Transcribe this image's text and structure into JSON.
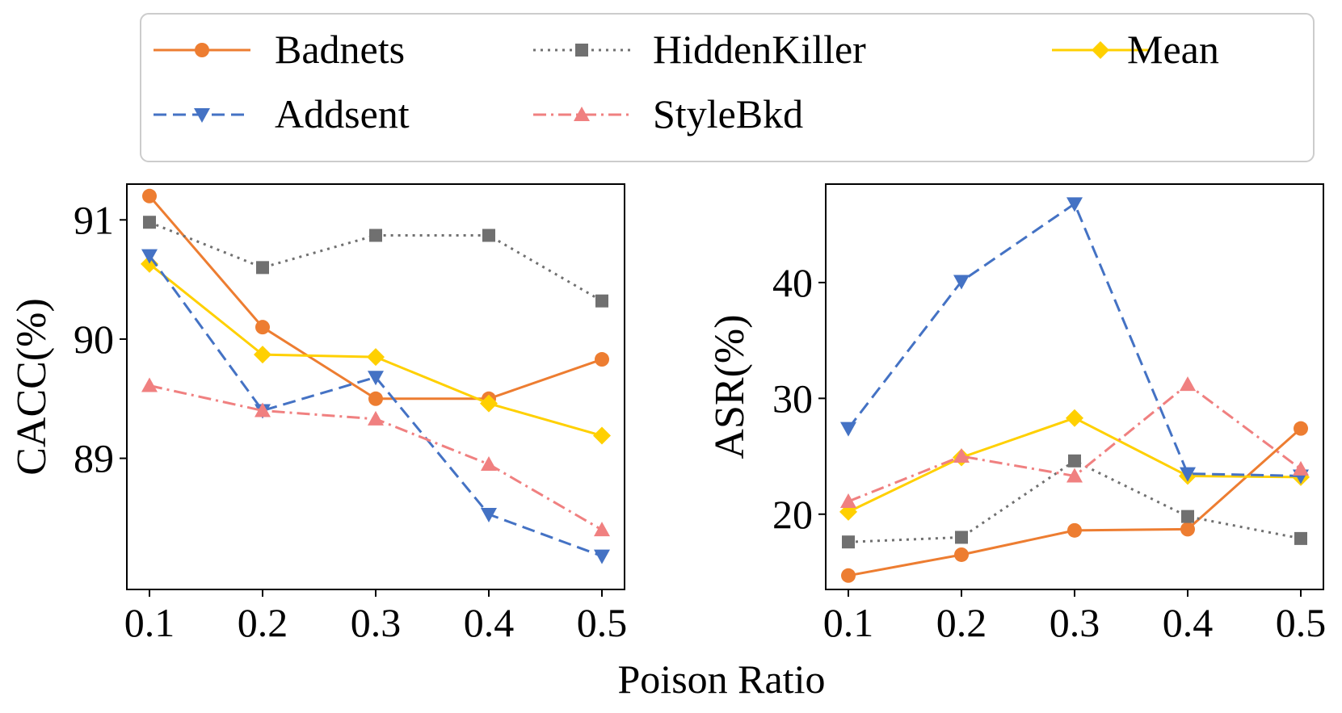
{
  "colors": {
    "Badnets": "#ED7D31",
    "Addsent": "#4472C4",
    "HiddenKiller": "#707070",
    "StyleBkd": "#F08080",
    "Mean": "#FFD000"
  },
  "legend": {
    "entries": [
      "Badnets",
      "HiddenKiller",
      "Mean",
      "Addsent",
      "StyleBkd"
    ]
  },
  "shared_xlabel": "Poison Ratio",
  "chart_data": [
    {
      "type": "line",
      "ylabel": "CACC(%)",
      "x": [
        0.1,
        0.2,
        0.3,
        0.4,
        0.5
      ],
      "xticks": [
        "0.1",
        "0.2",
        "0.3",
        "0.4",
        "0.5"
      ],
      "yticks": [
        "89",
        "90",
        "91"
      ],
      "xlim": [
        0.08,
        0.52
      ],
      "ylim": [
        87.9,
        91.3
      ],
      "grid": false,
      "series": [
        {
          "name": "Badnets",
          "marker": "circle",
          "dash": "solid",
          "values": [
            91.2,
            90.1,
            89.5,
            89.5,
            89.83
          ]
        },
        {
          "name": "HiddenKiller",
          "marker": "square",
          "dash": "dotted",
          "values": [
            90.98,
            90.6,
            90.87,
            90.87,
            90.32
          ]
        },
        {
          "name": "Mean",
          "marker": "diamond",
          "dash": "solid",
          "values": [
            90.63,
            89.87,
            89.85,
            89.46,
            89.19
          ]
        },
        {
          "name": "Addsent",
          "marker": "tri-down",
          "dash": "dashed",
          "values": [
            90.7,
            89.4,
            89.68,
            88.53,
            88.18
          ]
        },
        {
          "name": "StyleBkd",
          "marker": "tri-up",
          "dash": "dashdot",
          "values": [
            89.61,
            89.4,
            89.33,
            88.95,
            88.4
          ]
        }
      ]
    },
    {
      "type": "line",
      "ylabel": "ASR(%)",
      "x": [
        0.1,
        0.2,
        0.3,
        0.4,
        0.5
      ],
      "xticks": [
        "0.1",
        "0.2",
        "0.3",
        "0.4",
        "0.5"
      ],
      "yticks": [
        "20",
        "30",
        "40"
      ],
      "xlim": [
        0.08,
        0.52
      ],
      "ylim": [
        13.5,
        48.5
      ],
      "grid": false,
      "series": [
        {
          "name": "Badnets",
          "marker": "circle",
          "dash": "solid",
          "values": [
            14.7,
            16.5,
            18.6,
            18.7,
            27.4
          ]
        },
        {
          "name": "HiddenKiller",
          "marker": "square",
          "dash": "dotted",
          "values": [
            17.6,
            18.0,
            24.6,
            19.8,
            17.9
          ]
        },
        {
          "name": "Mean",
          "marker": "diamond",
          "dash": "solid",
          "values": [
            20.2,
            24.9,
            28.3,
            23.3,
            23.2
          ]
        },
        {
          "name": "Addsent",
          "marker": "tri-down",
          "dash": "dashed",
          "values": [
            27.4,
            40.1,
            46.8,
            23.5,
            23.3
          ]
        },
        {
          "name": "StyleBkd",
          "marker": "tri-up",
          "dash": "dashdot",
          "values": [
            21.1,
            25.0,
            23.3,
            31.2,
            23.9
          ]
        }
      ]
    }
  ]
}
